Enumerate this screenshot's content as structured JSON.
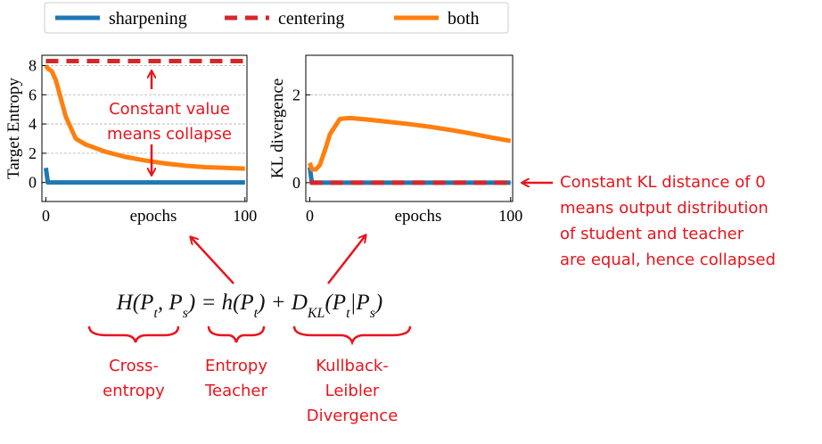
{
  "chart_data": [
    {
      "type": "line",
      "ylabel": "Target Entropy",
      "xlabel": "epochs",
      "legend": "top",
      "x": [
        0,
        1,
        3,
        5,
        8,
        10,
        15,
        20,
        30,
        40,
        50,
        60,
        70,
        80,
        90,
        100
      ],
      "xlim": [
        -2,
        101
      ],
      "xticks": [
        0,
        100
      ],
      "ylim": [
        -1.3,
        8.7
      ],
      "yticks": [
        0,
        2,
        4,
        6,
        8
      ],
      "grid": true,
      "series": [
        {
          "name": "sharpening",
          "color": "#1f77b4",
          "values": [
            1.0,
            0,
            0,
            0,
            0,
            0,
            0,
            0,
            0,
            0,
            0,
            0,
            0,
            0,
            0,
            0
          ]
        },
        {
          "name": "centering",
          "color": "#d62728",
          "dashed": true,
          "values": [
            8.3,
            8.3,
            8.3,
            8.3,
            8.3,
            8.3,
            8.3,
            8.3,
            8.3,
            8.3,
            8.3,
            8.3,
            8.3,
            8.3,
            8.3,
            8.3
          ]
        },
        {
          "name": "both",
          "color": "#ff7f0e",
          "values": [
            8.0,
            7.8,
            7.6,
            7.0,
            5.5,
            4.5,
            3.0,
            2.6,
            2.1,
            1.75,
            1.5,
            1.3,
            1.15,
            1.05,
            1.0,
            0.95
          ]
        }
      ]
    },
    {
      "type": "line",
      "ylabel": "KL divergence",
      "xlabel": "epochs",
      "x": [
        0,
        1,
        3,
        5,
        8,
        10,
        15,
        20,
        30,
        40,
        50,
        60,
        70,
        80,
        90,
        100
      ],
      "xlim": [
        -2,
        101
      ],
      "xticks": [
        0,
        100
      ],
      "ylim": [
        -0.43,
        2.9
      ],
      "yticks": [
        0,
        2
      ],
      "grid": true,
      "series": [
        {
          "color": "#1f77b4",
          "values": [
            0.35,
            0,
            0,
            0,
            0,
            0,
            0,
            0,
            0,
            0,
            0,
            0,
            0,
            0,
            0,
            0
          ]
        },
        {
          "color": "#d62728",
          "dashed": true,
          "values": [
            0,
            0,
            0,
            0,
            0,
            0,
            0,
            0,
            0,
            0,
            0,
            0,
            0,
            0,
            0,
            0
          ]
        },
        {
          "color": "#ff7f0e",
          "values": [
            0.45,
            0.3,
            0.3,
            0.4,
            0.8,
            1.1,
            1.45,
            1.47,
            1.43,
            1.38,
            1.33,
            1.27,
            1.2,
            1.12,
            1.03,
            0.95
          ]
        }
      ]
    }
  ],
  "annotations": {
    "collapse": [
      "Constant value",
      "means collapse"
    ],
    "kl_note": [
      "Constant KL distance of 0",
      "means output distribution",
      "of student and teacher",
      "are equal, hence collapsed"
    ]
  },
  "equation": [
    {
      "text": "H(P"
    },
    {
      "text": "t",
      "sub": true
    },
    {
      "text": ", P"
    },
    {
      "text": "s",
      "sub": true
    },
    {
      "text": ") = h(P"
    },
    {
      "text": "t",
      "sub": true
    },
    {
      "text": ") + D"
    },
    {
      "text": "KL",
      "sub": true
    },
    {
      "text": "(P"
    },
    {
      "text": "t",
      "sub": true
    },
    {
      "text": "|P"
    },
    {
      "text": "s",
      "sub": true
    },
    {
      "text": ")"
    }
  ],
  "terms": [
    {
      "lines": [
        "Cross-",
        "entropy"
      ]
    },
    {
      "lines": [
        "Entropy",
        "Teacher"
      ]
    },
    {
      "lines": [
        "Kullback-",
        "Leibler",
        "Divergence"
      ]
    }
  ]
}
